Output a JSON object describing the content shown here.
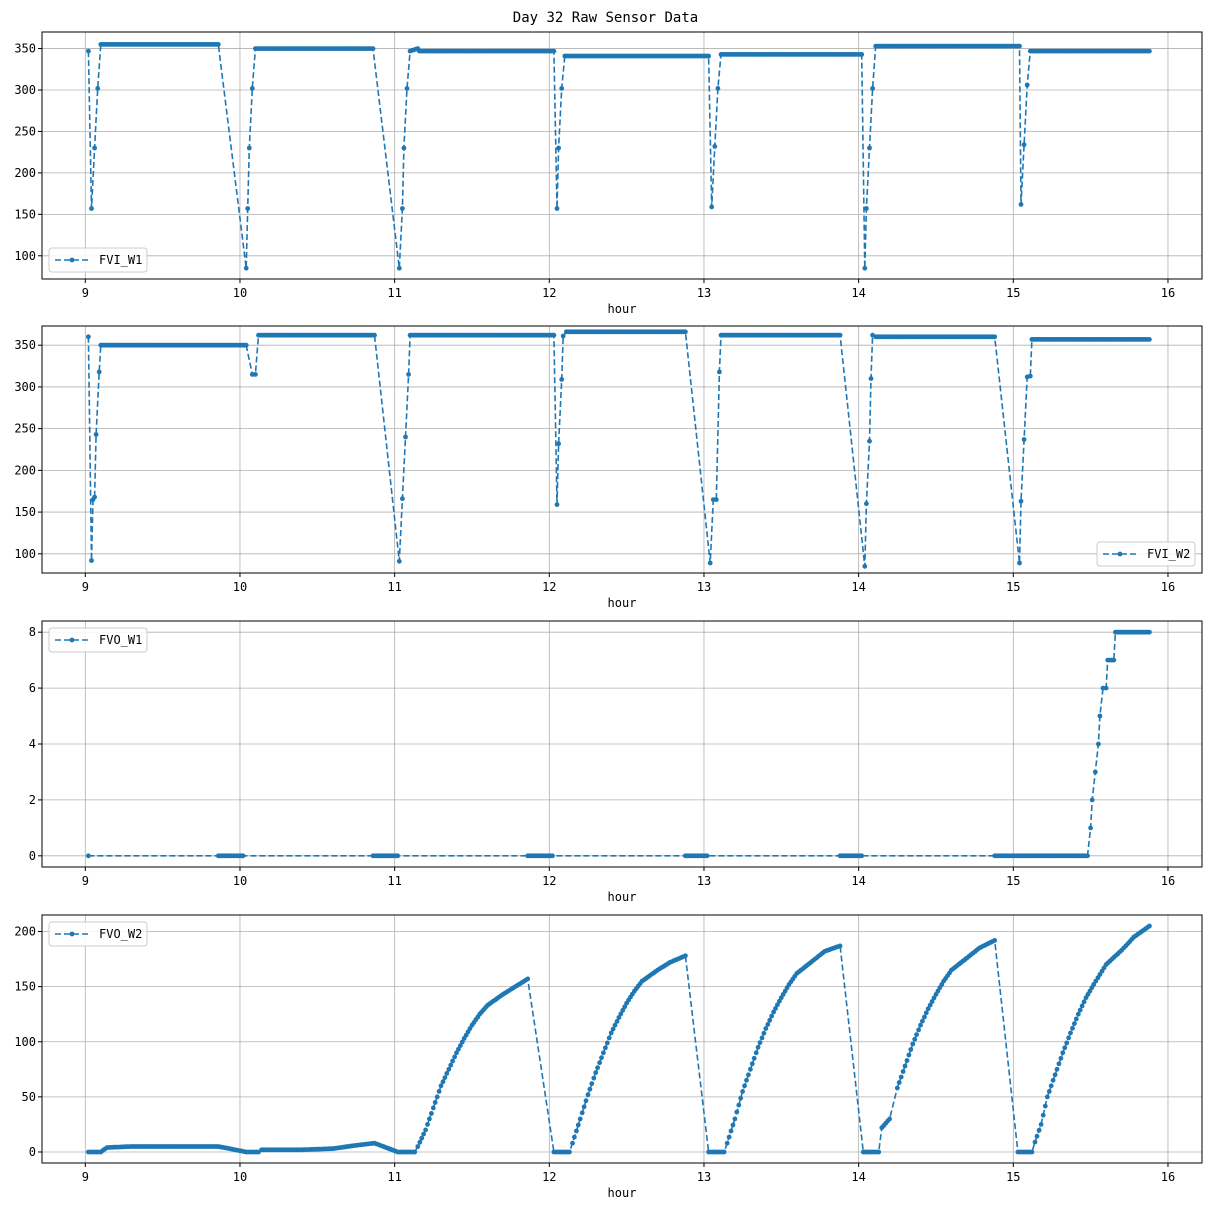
{
  "figure_title": "Day 32 Raw Sensor Data",
  "colors": {
    "series": "#1f77b4",
    "grid": "#b0b0b0",
    "axes": "#000000",
    "legend_border": "#cccccc"
  },
  "chart_data": [
    {
      "type": "line",
      "line_style": "dashed with point markers",
      "grid": true,
      "legend_position": "lower-left",
      "xlabel": "hour",
      "ylabel": "",
      "xlim": [
        8.72,
        16.22
      ],
      "ylim": [
        72,
        370
      ],
      "xticks": [
        9,
        10,
        11,
        12,
        13,
        14,
        15,
        16
      ],
      "yticks": [
        100,
        150,
        200,
        250,
        300,
        350
      ],
      "series": [
        {
          "name": "FVI_W1",
          "points": [
            [
              9.02,
              347
            ],
            [
              9.04,
              157
            ],
            [
              9.06,
              230
            ],
            [
              9.08,
              302
            ],
            [
              9.1,
              355
            ],
            [
              9.4,
              355
            ],
            [
              9.86,
              355
            ],
            [
              10.04,
              85
            ],
            [
              10.05,
              157
            ],
            [
              10.06,
              230
            ],
            [
              10.08,
              302
            ],
            [
              10.1,
              350
            ],
            [
              10.5,
              350
            ],
            [
              10.86,
              350
            ],
            [
              11.03,
              85
            ],
            [
              11.05,
              157
            ],
            [
              11.06,
              230
            ],
            [
              11.08,
              302
            ],
            [
              11.1,
              347
            ],
            [
              11.15,
              350
            ],
            [
              11.16,
              347
            ],
            [
              11.5,
              347
            ],
            [
              11.86,
              347
            ],
            [
              12.03,
              347
            ],
            [
              12.05,
              157
            ],
            [
              12.06,
              230
            ],
            [
              12.08,
              302
            ],
            [
              12.1,
              341
            ],
            [
              12.5,
              341
            ],
            [
              12.88,
              341
            ],
            [
              13.03,
              341
            ],
            [
              13.05,
              159
            ],
            [
              13.07,
              232
            ],
            [
              13.09,
              302
            ],
            [
              13.11,
              343
            ],
            [
              13.5,
              343
            ],
            [
              13.88,
              343
            ],
            [
              14.02,
              343
            ],
            [
              14.04,
              85
            ],
            [
              14.05,
              157
            ],
            [
              14.07,
              230
            ],
            [
              14.09,
              302
            ],
            [
              14.11,
              353
            ],
            [
              14.5,
              353
            ],
            [
              14.88,
              353
            ],
            [
              15.04,
              353
            ],
            [
              15.05,
              162
            ],
            [
              15.07,
              234
            ],
            [
              15.09,
              306
            ],
            [
              15.11,
              347
            ],
            [
              15.5,
              347
            ],
            [
              15.88,
              347
            ]
          ]
        }
      ]
    },
    {
      "type": "line",
      "line_style": "dashed with point markers",
      "grid": true,
      "legend_position": "lower-right",
      "xlabel": "hour",
      "ylabel": "",
      "xlim": [
        8.72,
        16.22
      ],
      "ylim": [
        77,
        373
      ],
      "xticks": [
        9,
        10,
        11,
        12,
        13,
        14,
        15,
        16
      ],
      "yticks": [
        100,
        150,
        200,
        250,
        300,
        350
      ],
      "series": [
        {
          "name": "FVI_W2",
          "points": [
            [
              9.02,
              360
            ],
            [
              9.04,
              92
            ],
            [
              9.05,
              165
            ],
            [
              9.06,
              168
            ],
            [
              9.07,
              243
            ],
            [
              9.09,
              318
            ],
            [
              9.1,
              350
            ],
            [
              9.5,
              350
            ],
            [
              9.86,
              350
            ],
            [
              10.04,
              350
            ],
            [
              10.08,
              315
            ],
            [
              10.1,
              315
            ],
            [
              10.12,
              362
            ],
            [
              10.5,
              362
            ],
            [
              10.87,
              362
            ],
            [
              11.03,
              91
            ],
            [
              11.05,
              166
            ],
            [
              11.07,
              240
            ],
            [
              11.09,
              315
            ],
            [
              11.1,
              362
            ],
            [
              11.5,
              362
            ],
            [
              11.86,
              362
            ],
            [
              12.03,
              362
            ],
            [
              12.05,
              159
            ],
            [
              12.06,
              232
            ],
            [
              12.08,
              309
            ],
            [
              12.09,
              361
            ],
            [
              12.11,
              366
            ],
            [
              12.5,
              366
            ],
            [
              12.88,
              366
            ],
            [
              13.04,
              89
            ],
            [
              13.06,
              165
            ],
            [
              13.08,
              165
            ],
            [
              13.1,
              318
            ],
            [
              13.11,
              362
            ],
            [
              13.5,
              362
            ],
            [
              13.88,
              362
            ],
            [
              14.04,
              85
            ],
            [
              14.05,
              160
            ],
            [
              14.07,
              235
            ],
            [
              14.08,
              310
            ],
            [
              14.09,
              362
            ],
            [
              14.11,
              360
            ],
            [
              14.5,
              360
            ],
            [
              14.88,
              360
            ],
            [
              15.04,
              89
            ],
            [
              15.05,
              163
            ],
            [
              15.07,
              237
            ],
            [
              15.09,
              312
            ],
            [
              15.11,
              313
            ],
            [
              15.12,
              357
            ],
            [
              15.5,
              357
            ],
            [
              15.88,
              357
            ]
          ]
        }
      ]
    },
    {
      "type": "line",
      "line_style": "dashed with point markers",
      "grid": true,
      "legend_position": "upper-left",
      "xlabel": "hour",
      "ylabel": "",
      "xlim": [
        8.72,
        16.22
      ],
      "ylim": [
        -0.4,
        8.4
      ],
      "xticks": [
        9,
        10,
        11,
        12,
        13,
        14,
        15,
        16
      ],
      "yticks": [
        0,
        2,
        4,
        6,
        8
      ],
      "series": [
        {
          "name": "FVO_W1",
          "points": [
            [
              9.02,
              0
            ],
            [
              9.86,
              0
            ],
            [
              10.02,
              0
            ],
            [
              10.86,
              0
            ],
            [
              11.02,
              0
            ],
            [
              11.86,
              0
            ],
            [
              12.02,
              0
            ],
            [
              12.88,
              0
            ],
            [
              13.02,
              0
            ],
            [
              13.88,
              0
            ],
            [
              14.02,
              0
            ],
            [
              14.88,
              0
            ],
            [
              15.02,
              0
            ],
            [
              15.48,
              0
            ],
            [
              15.5,
              1
            ],
            [
              15.51,
              2
            ],
            [
              15.53,
              3
            ],
            [
              15.55,
              4
            ],
            [
              15.56,
              5
            ],
            [
              15.58,
              6
            ],
            [
              15.6,
              6
            ],
            [
              15.61,
              7
            ],
            [
              15.65,
              7
            ],
            [
              15.66,
              8
            ],
            [
              15.88,
              8
            ]
          ]
        }
      ]
    },
    {
      "type": "line",
      "line_style": "dashed with point markers",
      "grid": true,
      "legend_position": "upper-left",
      "xlabel": "hour",
      "ylabel": "",
      "xlim": [
        8.72,
        16.22
      ],
      "ylim": [
        -10,
        215
      ],
      "xticks": [
        9,
        10,
        11,
        12,
        13,
        14,
        15,
        16
      ],
      "yticks": [
        0,
        50,
        100,
        150,
        200
      ],
      "series": [
        {
          "name": "FVO_W2",
          "points": [
            [
              9.02,
              0
            ],
            [
              9.1,
              0
            ],
            [
              9.14,
              4
            ],
            [
              9.3,
              5
            ],
            [
              9.6,
              5
            ],
            [
              9.86,
              5
            ],
            [
              10.04,
              0
            ],
            [
              10.12,
              0
            ],
            [
              10.14,
              2
            ],
            [
              10.4,
              2
            ],
            [
              10.6,
              3
            ],
            [
              10.75,
              6
            ],
            [
              10.87,
              8
            ],
            [
              11.02,
              0
            ],
            [
              11.13,
              0
            ],
            [
              11.15,
              5
            ],
            [
              11.2,
              20
            ],
            [
              11.25,
              40
            ],
            [
              11.3,
              60
            ],
            [
              11.35,
              75
            ],
            [
              11.4,
              90
            ],
            [
              11.45,
              103
            ],
            [
              11.5,
              115
            ],
            [
              11.55,
              125
            ],
            [
              11.6,
              133
            ],
            [
              11.7,
              143
            ],
            [
              11.78,
              150
            ],
            [
              11.86,
              157
            ],
            [
              12.03,
              0
            ],
            [
              12.13,
              0
            ],
            [
              12.15,
              8
            ],
            [
              12.2,
              30
            ],
            [
              12.25,
              52
            ],
            [
              12.3,
              72
            ],
            [
              12.35,
              90
            ],
            [
              12.4,
              108
            ],
            [
              12.45,
              122
            ],
            [
              12.5,
              135
            ],
            [
              12.55,
              146
            ],
            [
              12.6,
              155
            ],
            [
              12.7,
              165
            ],
            [
              12.78,
              172
            ],
            [
              12.88,
              178
            ],
            [
              13.03,
              0
            ],
            [
              13.13,
              0
            ],
            [
              13.15,
              8
            ],
            [
              13.2,
              30
            ],
            [
              13.25,
              55
            ],
            [
              13.3,
              75
            ],
            [
              13.35,
              95
            ],
            [
              13.4,
              112
            ],
            [
              13.45,
              127
            ],
            [
              13.5,
              140
            ],
            [
              13.55,
              152
            ],
            [
              13.6,
              162
            ],
            [
              13.7,
              173
            ],
            [
              13.78,
              182
            ],
            [
              13.88,
              187
            ],
            [
              14.03,
              0
            ],
            [
              14.13,
              0
            ],
            [
              14.15,
              22
            ],
            [
              14.2,
              30
            ],
            [
              14.25,
              58
            ],
            [
              14.3,
              78
            ],
            [
              14.35,
              98
            ],
            [
              14.4,
              115
            ],
            [
              14.45,
              130
            ],
            [
              14.5,
              143
            ],
            [
              14.55,
              155
            ],
            [
              14.6,
              165
            ],
            [
              14.7,
              176
            ],
            [
              14.78,
              185
            ],
            [
              14.88,
              192
            ],
            [
              15.03,
              0
            ],
            [
              15.12,
              0
            ],
            [
              15.14,
              9
            ],
            [
              15.18,
              25
            ],
            [
              15.22,
              50
            ],
            [
              15.27,
              70
            ],
            [
              15.32,
              90
            ],
            [
              15.37,
              108
            ],
            [
              15.42,
              125
            ],
            [
              15.47,
              140
            ],
            [
              15.52,
              152
            ],
            [
              15.6,
              170
            ],
            [
              15.7,
              183
            ],
            [
              15.78,
              195
            ],
            [
              15.88,
              205
            ]
          ]
        }
      ]
    }
  ]
}
